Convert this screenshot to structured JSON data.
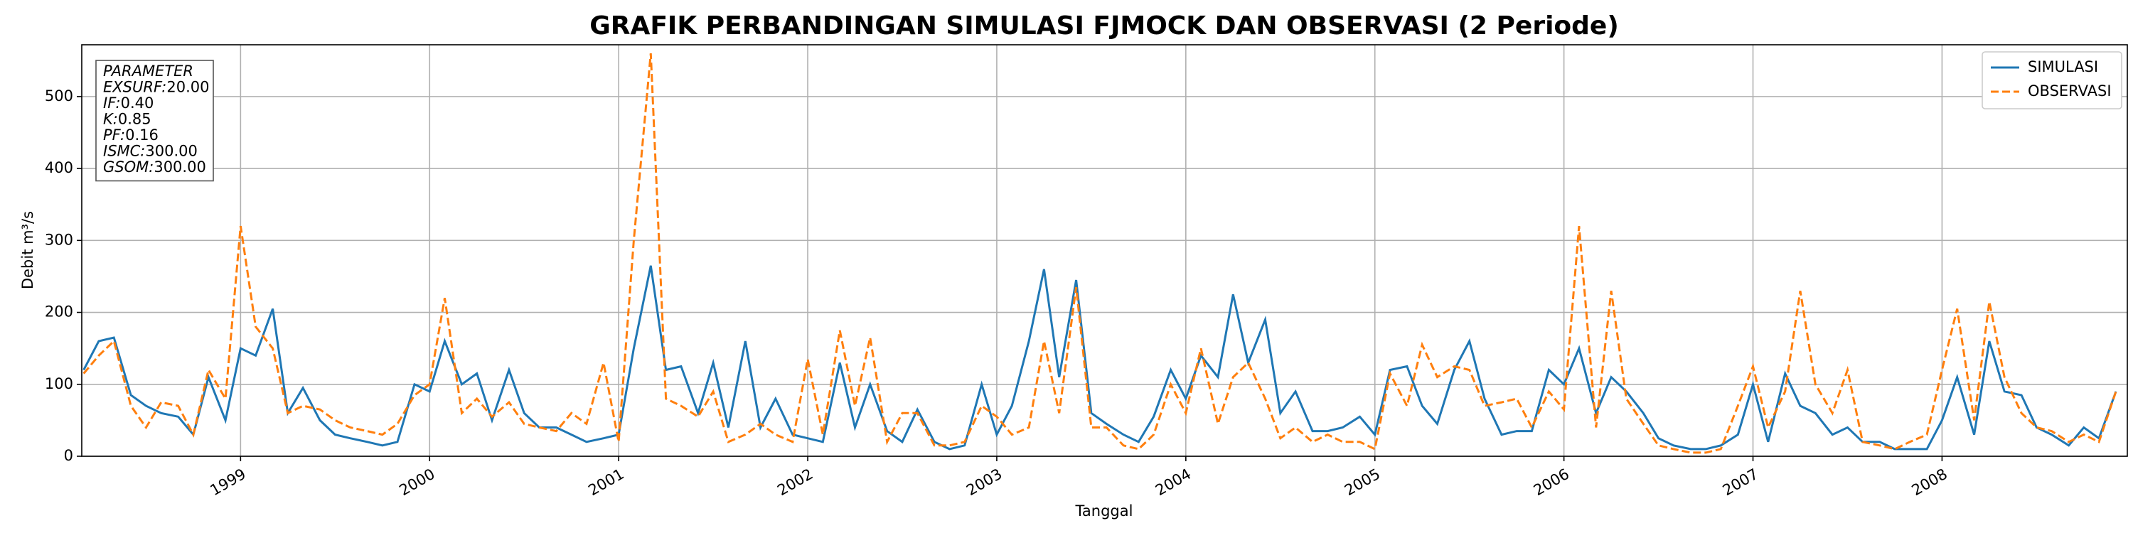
{
  "chart_data": {
    "type": "line",
    "title": "GRAFIK PERBANDINGAN SIMULASI FJMOCK DAN OBSERVASI (2 Periode)",
    "xlabel": "Tanggal",
    "ylabel": "Debit m³/s",
    "annotation": {
      "title": "PARAMETER",
      "params": [
        {
          "name": "EXSURF:",
          "value": "20.00"
        },
        {
          "name": "IF:",
          "value": "0.40"
        },
        {
          "name": "K:",
          "value": "0.85"
        },
        {
          "name": "PF:",
          "value": "0.16"
        },
        {
          "name": "ISMC:",
          "value": "300.00"
        },
        {
          "name": "GSOM:",
          "value": "300.00"
        }
      ]
    },
    "x": [
      1998.17,
      1998.25,
      1998.33,
      1998.42,
      1998.5,
      1998.58,
      1998.67,
      1998.75,
      1998.83,
      1998.92,
      1999.0,
      1999.08,
      1999.17,
      1999.25,
      1999.33,
      1999.42,
      1999.5,
      1999.58,
      1999.67,
      1999.75,
      1999.83,
      1999.92,
      2000.0,
      2000.08,
      2000.17,
      2000.25,
      2000.33,
      2000.42,
      2000.5,
      2000.58,
      2000.67,
      2000.75,
      2000.83,
      2000.92,
      2001.0,
      2001.08,
      2001.17,
      2001.25,
      2001.33,
      2001.42,
      2001.5,
      2001.58,
      2001.67,
      2001.75,
      2001.83,
      2001.92,
      2002.0,
      2002.08,
      2002.17,
      2002.25,
      2002.33,
      2002.42,
      2002.5,
      2002.58,
      2002.67,
      2002.75,
      2002.83,
      2002.92,
      2003.0,
      2003.08,
      2003.17,
      2003.25,
      2003.33,
      2003.42,
      2003.5,
      2003.58,
      2003.67,
      2003.75,
      2003.83,
      2003.92,
      2004.0,
      2004.08,
      2004.17,
      2004.25,
      2004.33,
      2004.42,
      2004.5,
      2004.58,
      2004.67,
      2004.75,
      2004.83,
      2004.92,
      2005.0,
      2005.08,
      2005.17,
      2005.25,
      2005.33,
      2005.42,
      2005.5,
      2005.58,
      2005.67,
      2005.75,
      2005.83,
      2005.92,
      2006.0,
      2006.08,
      2006.17,
      2006.25,
      2006.33,
      2006.42,
      2006.5,
      2006.58,
      2006.67,
      2006.75,
      2006.83,
      2006.92,
      2007.0,
      2007.08,
      2007.17,
      2007.25,
      2007.33,
      2007.42,
      2007.5,
      2007.58,
      2007.67,
      2007.75,
      2007.83,
      2007.92,
      2008.0,
      2008.08,
      2008.17,
      2008.25,
      2008.33,
      2008.42,
      2008.5,
      2008.58,
      2008.67,
      2008.75,
      2008.83,
      2008.92
    ],
    "series": [
      {
        "name": "SIMULASI",
        "color": "#1f77b4",
        "dash": false,
        "values": [
          120,
          160,
          165,
          85,
          70,
          60,
          55,
          30,
          110,
          50,
          150,
          140,
          205,
          60,
          95,
          50,
          30,
          25,
          20,
          15,
          20,
          100,
          90,
          160,
          100,
          115,
          50,
          120,
          60,
          40,
          40,
          30,
          20,
          25,
          30,
          150,
          265,
          120,
          125,
          60,
          130,
          40,
          160,
          40,
          80,
          30,
          25,
          20,
          130,
          40,
          100,
          35,
          20,
          65,
          20,
          10,
          15,
          100,
          30,
          70,
          160,
          260,
          110,
          245,
          60,
          45,
          30,
          20,
          55,
          120,
          80,
          140,
          110,
          225,
          130,
          190,
          60,
          90,
          35,
          35,
          40,
          55,
          30,
          120,
          125,
          70,
          45,
          120,
          160,
          80,
          30,
          35,
          35,
          120,
          100,
          150,
          60,
          110,
          90,
          60,
          25,
          15,
          10,
          10,
          15,
          30,
          100,
          20,
          115,
          70,
          60,
          30,
          40,
          20,
          20,
          10,
          10,
          10,
          50,
          110,
          30,
          160,
          90,
          85,
          40,
          30,
          15,
          40,
          25,
          90
        ]
      },
      {
        "name": "OBSERVASI",
        "color": "#ff7f0e",
        "dash": true,
        "values": [
          115,
          140,
          160,
          70,
          40,
          75,
          70,
          30,
          120,
          80,
          320,
          180,
          150,
          60,
          70,
          65,
          50,
          40,
          35,
          30,
          45,
          85,
          100,
          220,
          60,
          80,
          55,
          75,
          45,
          40,
          35,
          60,
          45,
          130,
          20,
          300,
          560,
          80,
          70,
          55,
          90,
          20,
          30,
          45,
          30,
          20,
          135,
          30,
          175,
          70,
          165,
          20,
          60,
          60,
          15,
          15,
          20,
          70,
          55,
          30,
          40,
          160,
          60,
          235,
          40,
          40,
          15,
          10,
          30,
          100,
          60,
          150,
          45,
          110,
          130,
          80,
          25,
          40,
          20,
          30,
          20,
          20,
          10,
          115,
          70,
          155,
          110,
          125,
          120,
          70,
          75,
          80,
          40,
          90,
          65,
          320,
          40,
          230,
          80,
          45,
          15,
          10,
          5,
          5,
          10,
          70,
          125,
          40,
          90,
          230,
          100,
          60,
          120,
          20,
          15,
          10,
          20,
          30,
          120,
          205,
          50,
          215,
          110,
          60,
          40,
          35,
          20,
          30,
          20,
          90
        ]
      }
    ],
    "xlim": [
      1998.16,
      2008.98
    ],
    "xticks": [
      1999,
      2000,
      2001,
      2002,
      2003,
      2004,
      2005,
      2006,
      2007,
      2008
    ],
    "ylim": [
      0,
      572
    ],
    "yticks": [
      0,
      100,
      200,
      300,
      400,
      500
    ],
    "grid": true,
    "legend": "upper right"
  }
}
